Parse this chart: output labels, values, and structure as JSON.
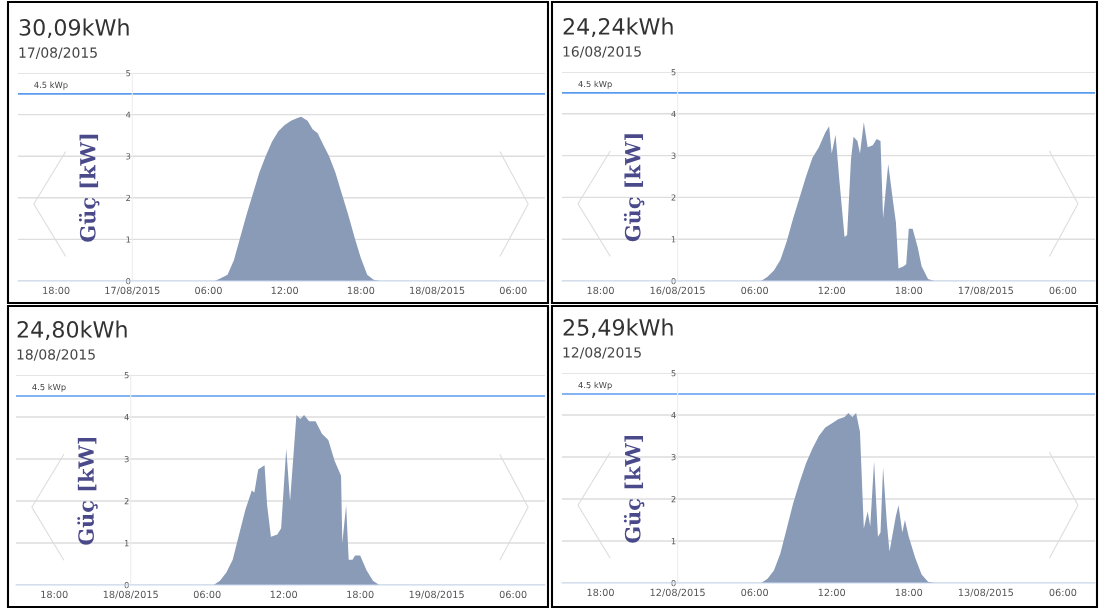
{
  "chart_data": [
    {
      "type": "area",
      "title": "30,09kWh",
      "subtitle": "17/08/2015",
      "ylabel": "Güç [kW]",
      "xlim": [
        "2015-08-16T15:00",
        "2015-08-18T08:30"
      ],
      "xticks": [
        {
          "value": "2015-08-16T18:00",
          "label": "18:00"
        },
        {
          "value": "2015-08-17T00:00",
          "label": "17/08/2015"
        },
        {
          "value": "2015-08-17T06:00",
          "label": "06:00"
        },
        {
          "value": "2015-08-17T12:00",
          "label": "12:00"
        },
        {
          "value": "2015-08-17T18:00",
          "label": "18:00"
        },
        {
          "value": "2015-08-18T00:00",
          "label": "18/08/2015"
        },
        {
          "value": "2015-08-18T06:00",
          "label": "06:00"
        }
      ],
      "ylim": [
        0,
        5
      ],
      "yticks": [
        0,
        1,
        2,
        3,
        4,
        5
      ],
      "grid": "y",
      "ref_lines": [
        {
          "axis": "y",
          "value": 4.5,
          "label": "4.5 kWp",
          "color": "#5b9bef"
        }
      ],
      "series": [
        {
          "color": "#8a9bb8",
          "x": [
            "2015-08-17T00:00",
            "2015-08-17T06:30",
            "2015-08-17T07:00",
            "2015-08-17T07:30",
            "2015-08-17T08:00",
            "2015-08-17T09:00",
            "2015-08-17T10:00",
            "2015-08-17T10:30",
            "2015-08-17T11:00",
            "2015-08-17T11:30",
            "2015-08-17T12:00",
            "2015-08-17T12:30",
            "2015-08-17T13:00",
            "2015-08-17T13:18",
            "2015-08-17T13:48",
            "2015-08-17T14:12",
            "2015-08-17T14:36",
            "2015-08-17T15:00",
            "2015-08-17T15:30",
            "2015-08-17T16:00",
            "2015-08-17T16:30",
            "2015-08-17T17:00",
            "2015-08-17T17:30",
            "2015-08-17T18:00",
            "2015-08-17T18:30",
            "2015-08-17T19:00",
            "2015-08-17T19:30",
            "2015-08-18T00:00"
          ],
          "values": [
            0,
            0,
            0.07,
            0.15,
            0.5,
            1.6,
            2.6,
            3.0,
            3.35,
            3.6,
            3.75,
            3.85,
            3.92,
            3.95,
            3.85,
            3.65,
            3.55,
            3.3,
            3.0,
            2.6,
            2.1,
            1.6,
            1.05,
            0.55,
            0.15,
            0.03,
            0,
            0
          ]
        }
      ]
    },
    {
      "type": "area",
      "title": "24,24kWh",
      "subtitle": "16/08/2015",
      "ylabel": "Güç [kW]",
      "xlim": [
        "2015-08-15T15:00",
        "2015-08-17T08:30"
      ],
      "xticks": [
        {
          "value": "2015-08-15T18:00",
          "label": "18:00"
        },
        {
          "value": "2015-08-16T00:00",
          "label": "16/08/2015"
        },
        {
          "value": "2015-08-16T06:00",
          "label": "06:00"
        },
        {
          "value": "2015-08-16T12:00",
          "label": "12:00"
        },
        {
          "value": "2015-08-16T18:00",
          "label": "18:00"
        },
        {
          "value": "2015-08-17T00:00",
          "label": "17/08/2015"
        },
        {
          "value": "2015-08-17T06:00",
          "label": "06:00"
        }
      ],
      "ylim": [
        0,
        5
      ],
      "yticks": [
        0,
        1,
        2,
        3,
        4,
        5
      ],
      "grid": "y",
      "ref_lines": [
        {
          "axis": "y",
          "value": 4.5,
          "label": "4.5 kWp",
          "color": "#5b9bef"
        }
      ],
      "series": [
        {
          "color": "#8a9bb8",
          "x": [
            "2015-08-16T00:00",
            "2015-08-16T06:30",
            "2015-08-16T07:00",
            "2015-08-16T07:30",
            "2015-08-16T08:00",
            "2015-08-16T08:30",
            "2015-08-16T09:00",
            "2015-08-16T09:30",
            "2015-08-16T10:00",
            "2015-08-16T10:30",
            "2015-08-16T11:00",
            "2015-08-16T11:30",
            "2015-08-16T11:48",
            "2015-08-16T12:00",
            "2015-08-16T12:18",
            "2015-08-16T12:36",
            "2015-08-16T13:00",
            "2015-08-16T13:12",
            "2015-08-16T13:30",
            "2015-08-16T13:42",
            "2015-08-16T14:00",
            "2015-08-16T14:12",
            "2015-08-16T14:30",
            "2015-08-16T14:48",
            "2015-08-16T15:12",
            "2015-08-16T15:30",
            "2015-08-16T15:48",
            "2015-08-16T16:00",
            "2015-08-16T16:24",
            "2015-08-16T16:48",
            "2015-08-16T17:00",
            "2015-08-16T17:12",
            "2015-08-16T17:36",
            "2015-08-16T17:48",
            "2015-08-16T18:00",
            "2015-08-16T18:18",
            "2015-08-16T18:42",
            "2015-08-16T19:00",
            "2015-08-16T19:30",
            "2015-08-16T20:00",
            "2015-08-17T00:00"
          ],
          "values": [
            0,
            0,
            0.1,
            0.25,
            0.5,
            0.95,
            1.5,
            2.0,
            2.5,
            2.95,
            3.2,
            3.55,
            3.7,
            3.05,
            3.5,
            2.4,
            1.05,
            1.1,
            2.9,
            3.45,
            3.35,
            3.05,
            3.8,
            3.2,
            3.25,
            3.4,
            3.35,
            1.5,
            2.8,
            1.85,
            1.4,
            0.3,
            0.35,
            0.4,
            1.25,
            1.25,
            0.8,
            0.35,
            0.05,
            0,
            0
          ]
        }
      ]
    },
    {
      "type": "area",
      "title": "24,80kWh",
      "subtitle": "18/08/2015",
      "ylabel": "Güç [kW]",
      "xlim": [
        "2015-08-17T15:00",
        "2015-08-19T08:30"
      ],
      "xticks": [
        {
          "value": "2015-08-17T18:00",
          "label": "18:00"
        },
        {
          "value": "2015-08-18T00:00",
          "label": "18/08/2015"
        },
        {
          "value": "2015-08-18T06:00",
          "label": "06:00"
        },
        {
          "value": "2015-08-18T12:00",
          "label": "12:00"
        },
        {
          "value": "2015-08-18T18:00",
          "label": "18:00"
        },
        {
          "value": "2015-08-19T00:00",
          "label": "19/08/2015"
        },
        {
          "value": "2015-08-19T06:00",
          "label": "06:00"
        }
      ],
      "ylim": [
        0,
        5
      ],
      "yticks": [
        0,
        1,
        2,
        3,
        4,
        5
      ],
      "grid": "y",
      "ref_lines": [
        {
          "axis": "y",
          "value": 4.5,
          "label": "4.5 kWp",
          "color": "#5b9bef"
        }
      ],
      "series": [
        {
          "color": "#8a9bb8",
          "x": [
            "2015-08-18T00:00",
            "2015-08-18T06:30",
            "2015-08-18T07:00",
            "2015-08-18T07:30",
            "2015-08-18T08:00",
            "2015-08-18T08:30",
            "2015-08-18T09:00",
            "2015-08-18T09:30",
            "2015-08-18T09:42",
            "2015-08-18T10:00",
            "2015-08-18T10:30",
            "2015-08-18T10:42",
            "2015-08-18T11:00",
            "2015-08-18T11:30",
            "2015-08-18T11:48",
            "2015-08-18T12:12",
            "2015-08-18T12:30",
            "2015-08-18T13:00",
            "2015-08-18T13:18",
            "2015-08-18T13:36",
            "2015-08-18T14:00",
            "2015-08-18T14:30",
            "2015-08-18T15:00",
            "2015-08-18T15:30",
            "2015-08-18T16:00",
            "2015-08-18T16:30",
            "2015-08-18T16:36",
            "2015-08-18T16:54",
            "2015-08-18T17:06",
            "2015-08-18T17:24",
            "2015-08-18T17:36",
            "2015-08-18T18:00",
            "2015-08-18T18:30",
            "2015-08-18T19:00",
            "2015-08-18T19:30",
            "2015-08-19T00:00"
          ],
          "values": [
            0,
            0,
            0.1,
            0.3,
            0.6,
            1.2,
            1.8,
            2.25,
            2.2,
            2.75,
            2.85,
            1.9,
            1.15,
            1.2,
            1.35,
            3.25,
            2.0,
            4.05,
            3.95,
            4.05,
            3.9,
            3.9,
            3.6,
            3.45,
            2.95,
            2.6,
            1.0,
            1.9,
            0.6,
            0.6,
            0.7,
            0.7,
            0.35,
            0.1,
            0,
            0
          ]
        }
      ]
    },
    {
      "type": "area",
      "title": "25,49kWh",
      "subtitle": "12/08/2015",
      "ylabel": "Güç [kW]",
      "xlim": [
        "2015-08-11T15:00",
        "2015-08-13T08:30"
      ],
      "xticks": [
        {
          "value": "2015-08-11T18:00",
          "label": "18:00"
        },
        {
          "value": "2015-08-12T00:00",
          "label": "12/08/2015"
        },
        {
          "value": "2015-08-12T06:00",
          "label": "06:00"
        },
        {
          "value": "2015-08-12T12:00",
          "label": "12:00"
        },
        {
          "value": "2015-08-12T18:00",
          "label": "18:00"
        },
        {
          "value": "2015-08-13T00:00",
          "label": "13/08/2015"
        },
        {
          "value": "2015-08-13T06:00",
          "label": "06:00"
        }
      ],
      "ylim": [
        0,
        5
      ],
      "yticks": [
        0,
        1,
        2,
        3,
        4,
        5
      ],
      "grid": "y",
      "ref_lines": [
        {
          "axis": "y",
          "value": 4.5,
          "label": "4.5 kWp",
          "color": "#5b9bef"
        }
      ],
      "series": [
        {
          "color": "#8a9bb8",
          "x": [
            "2015-08-12T00:00",
            "2015-08-12T06:30",
            "2015-08-12T07:00",
            "2015-08-12T07:30",
            "2015-08-12T08:00",
            "2015-08-12T08:30",
            "2015-08-12T09:00",
            "2015-08-12T09:30",
            "2015-08-12T10:00",
            "2015-08-12T10:30",
            "2015-08-12T11:00",
            "2015-08-12T11:30",
            "2015-08-12T12:00",
            "2015-08-12T12:30",
            "2015-08-12T13:00",
            "2015-08-12T13:18",
            "2015-08-12T13:36",
            "2015-08-12T13:54",
            "2015-08-12T14:12",
            "2015-08-12T14:30",
            "2015-08-12T14:48",
            "2015-08-12T15:00",
            "2015-08-12T15:18",
            "2015-08-12T15:36",
            "2015-08-12T15:48",
            "2015-08-12T16:00",
            "2015-08-12T16:18",
            "2015-08-12T16:30",
            "2015-08-12T17:00",
            "2015-08-12T17:12",
            "2015-08-12T17:30",
            "2015-08-12T17:42",
            "2015-08-12T18:00",
            "2015-08-12T18:30",
            "2015-08-12T19:00",
            "2015-08-12T19:30",
            "2015-08-12T20:00",
            "2015-08-13T00:00"
          ],
          "values": [
            0,
            0,
            0.1,
            0.3,
            0.7,
            1.3,
            1.9,
            2.4,
            2.85,
            3.2,
            3.5,
            3.7,
            3.8,
            3.9,
            3.95,
            4.05,
            3.95,
            4.05,
            3.6,
            1.3,
            1.7,
            1.35,
            2.9,
            1.1,
            1.2,
            2.75,
            1.4,
            0.75,
            1.6,
            1.85,
            1.2,
            1.5,
            1.1,
            0.6,
            0.2,
            0.03,
            0,
            0
          ]
        }
      ]
    }
  ]
}
